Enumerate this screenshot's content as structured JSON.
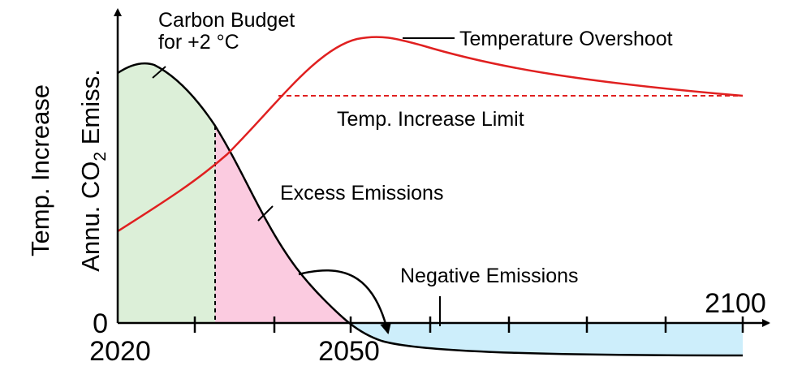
{
  "labels": {
    "carbon_budget_line1": "Carbon Budget",
    "carbon_budget_line2": "for +2 °C",
    "temperature_overshoot": "Temperature Overshoot",
    "temp_increase_limit": "Temp. Increase Limit",
    "excess_emissions": "Excess Emissions",
    "negative_emissions": "Negative Emissions",
    "y_label_temperature": "Temp. Increase",
    "y_label_emissions": {
      "main": "Annu. CO",
      "subscript": "2",
      "rest": " Emiss."
    },
    "zero": "0",
    "year_start": "2020",
    "year_mid": "2050",
    "year_end": "2100"
  }
}
